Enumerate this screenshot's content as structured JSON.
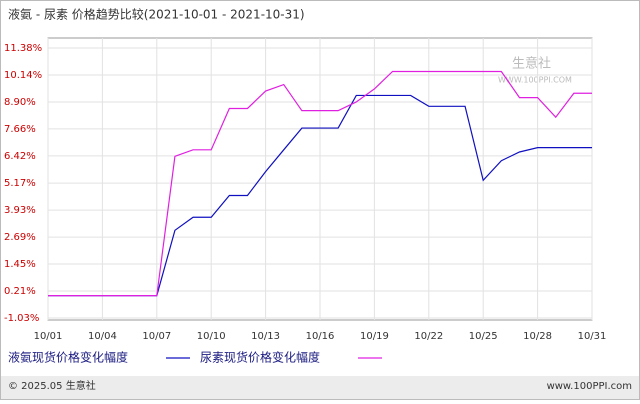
{
  "chart_data": {
    "type": "line",
    "title": "液氨 - 尿素  价格趋势比较(2021-10-01 - 2021-10-31)",
    "categories": [
      "10/01",
      null,
      null,
      "10/04",
      null,
      null,
      "10/07",
      null,
      null,
      "10/10",
      null,
      null,
      "10/13",
      null,
      null,
      "10/16",
      null,
      null,
      "10/19",
      null,
      null,
      "10/22",
      null,
      null,
      "10/25",
      null,
      null,
      "10/28",
      null,
      null,
      "10/31"
    ],
    "series": [
      {
        "name": "液氨现货价格变化幅度",
        "color": "#1010c0",
        "values": [
          0,
          0,
          0,
          0,
          0,
          0,
          0,
          3.0,
          3.6,
          3.6,
          4.6,
          4.6,
          5.7,
          6.7,
          7.7,
          7.7,
          7.7,
          9.2,
          9.2,
          9.2,
          9.2,
          8.7,
          8.7,
          8.7,
          5.3,
          6.2,
          6.6,
          6.8,
          6.8,
          6.8,
          6.8
        ]
      },
      {
        "name": "尿素现货价格变化幅度",
        "color": "#e020e0",
        "values": [
          0,
          0,
          0,
          0,
          0,
          0,
          0,
          6.4,
          6.7,
          6.7,
          8.6,
          8.6,
          9.4,
          9.7,
          8.5,
          8.5,
          8.5,
          8.9,
          9.5,
          10.3,
          10.3,
          10.3,
          10.3,
          10.3,
          10.3,
          10.3,
          9.1,
          9.1,
          8.2,
          9.3,
          9.3
        ]
      }
    ],
    "ylim": [
      -1.03,
      11.38
    ],
    "yticks": [
      {
        "value": 11.38,
        "label": "11.38%"
      },
      {
        "value": 10.14,
        "label": "10.14%"
      },
      {
        "value": 8.9,
        "label": "8.90%"
      },
      {
        "value": 7.66,
        "label": "7.66%"
      },
      {
        "value": 6.42,
        "label": "6.42%"
      },
      {
        "value": 5.17,
        "label": "5.17%"
      },
      {
        "value": 3.93,
        "label": "3.93%"
      },
      {
        "value": 2.69,
        "label": "2.69%"
      },
      {
        "value": 1.45,
        "label": "1.45%"
      },
      {
        "value": 0.21,
        "label": "0.21%"
      },
      {
        "value": -1.03,
        "label": "-1.03%"
      }
    ],
    "grid": true,
    "watermark": "生意社",
    "watermark_url": "WWW.100PPI.COM",
    "footer_left": "© 2025.05 生意社",
    "footer_right": "www.100PPI.com"
  }
}
